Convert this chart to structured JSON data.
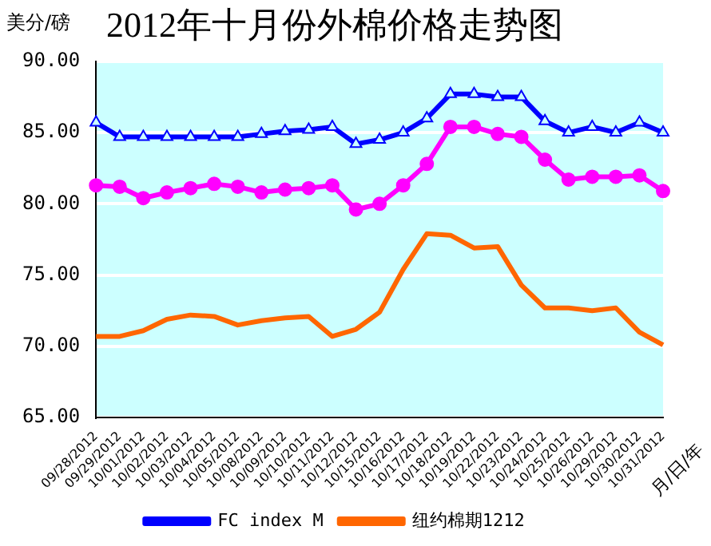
{
  "chart_data": {
    "type": "line",
    "title": "2012年十月份外棉价格走势图",
    "ylabel": "美分/磅",
    "xlabel": "月/日/年",
    "categories": [
      "09/28/2012",
      "09/29/2012",
      "10/01/2012",
      "10/02/2012",
      "10/03/2012",
      "10/04/2012",
      "10/05/2012",
      "10/08/2012",
      "10/09/2012",
      "10/10/2012",
      "10/11/2012",
      "10/12/2012",
      "10/15/2012",
      "10/16/2012",
      "10/17/2012",
      "10/18/2012",
      "10/19/2012",
      "10/22/2012",
      "10/23/2012",
      "10/24/2012",
      "10/25/2012",
      "10/26/2012",
      "10/29/2012",
      "10/30/2012",
      "10/31/2012"
    ],
    "series": [
      {
        "name": "FC index M",
        "color": "#0000ff",
        "marker": "triangle",
        "values": [
          85.7,
          84.7,
          84.7,
          84.7,
          84.7,
          84.7,
          84.7,
          84.9,
          85.1,
          85.2,
          85.4,
          84.2,
          84.5,
          85.0,
          86.0,
          87.7,
          87.7,
          87.5,
          87.5,
          85.8,
          85.0,
          85.4,
          85.0,
          85.7,
          85.0
        ]
      },
      {
        "color": "#ff00ff",
        "marker": "circle",
        "values": [
          81.3,
          81.2,
          80.4,
          80.8,
          81.1,
          81.4,
          81.2,
          80.8,
          81.0,
          81.1,
          81.3,
          79.6,
          80.0,
          81.3,
          82.8,
          85.4,
          85.4,
          84.9,
          84.7,
          83.1,
          81.7,
          81.9,
          81.9,
          82.0,
          80.9
        ]
      },
      {
        "name": "纽约棉期1212",
        "color": "#ff6600",
        "marker": "none",
        "values": [
          70.7,
          70.7,
          71.1,
          71.9,
          72.2,
          72.1,
          71.5,
          71.8,
          72.0,
          72.1,
          70.7,
          71.2,
          72.4,
          75.4,
          77.9,
          77.8,
          76.9,
          77.0,
          74.3,
          72.7,
          72.7,
          72.5,
          72.7,
          71.0,
          70.1
        ]
      }
    ],
    "ylim": [
      65,
      90
    ],
    "yticks": [
      {
        "value": 65,
        "label": "65.00"
      },
      {
        "value": 70,
        "label": "70.00"
      },
      {
        "value": 75,
        "label": "75.00"
      },
      {
        "value": 80,
        "label": "80.00"
      },
      {
        "value": 85,
        "label": "85.00"
      },
      {
        "value": 90,
        "label": "90.00"
      }
    ],
    "grid": "y",
    "legend": "bottom"
  }
}
